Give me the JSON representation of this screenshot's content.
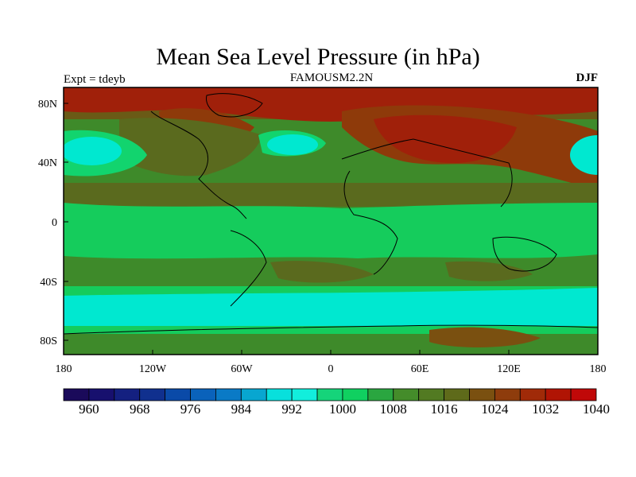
{
  "title": "Mean Sea Level Pressure (in hPa)",
  "left_label": "Expt = tdeyb",
  "center_label": "FAMOUSM2.2N",
  "right_label": "DJF",
  "y_ticks": [
    "80N",
    "40N",
    "0",
    "40S",
    "80S"
  ],
  "x_ticks": [
    "180",
    "120W",
    "60W",
    "0",
    "60E",
    "120E",
    "180"
  ],
  "colorbar": {
    "labels": [
      "960",
      "968",
      "976",
      "984",
      "992",
      "1000",
      "1008",
      "1016",
      "1024",
      "1032",
      "1040"
    ],
    "colors": [
      "#1a0a5a",
      "#17106e",
      "#142080",
      "#10308e",
      "#0a4aa8",
      "#0a62bb",
      "#0a7ac6",
      "#08a6d0",
      "#08e0dc",
      "#12eedc",
      "#15d47a",
      "#10d060",
      "#2aa640",
      "#448c2a",
      "#527a22",
      "#5e6a1a",
      "#7a5010",
      "#8e3c0c",
      "#a02a08",
      "#b01404",
      "#c00808"
    ]
  },
  "levels": {
    "ocean_tropical": "#15cc5c",
    "midlat": "#3e8a2a",
    "land_high": "#5a6a1e",
    "siberia": "#8e3a0a",
    "pole": "#a0200a",
    "low_subpolar": "#00e8d0"
  }
}
